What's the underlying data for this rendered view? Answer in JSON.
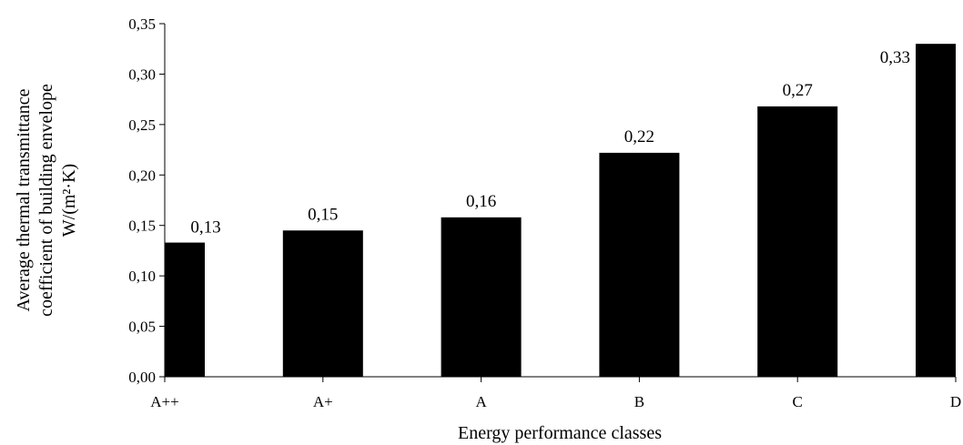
{
  "chart_data": {
    "type": "bar",
    "title": "",
    "categories": [
      "A++",
      "A+",
      "A",
      "B",
      "C",
      "D"
    ],
    "values": [
      0.133,
      0.145,
      0.158,
      0.222,
      0.268,
      0.33
    ],
    "data_labels": [
      "0,13",
      "0,15",
      "0,16",
      "0,22",
      "0,27",
      "0,33"
    ],
    "xlabel": "Energy performance classes",
    "ylabel_lines": [
      "Average thermal transmittance",
      "coefficient of building envelope",
      "W/(m²·K)"
    ],
    "ylim": [
      0,
      0.35
    ],
    "y_ticks": [
      0,
      0.05,
      0.1,
      0.15,
      0.2,
      0.25,
      0.3,
      0.35
    ],
    "y_tick_labels": [
      "0,00",
      "0,05",
      "0,10",
      "0,15",
      "0,20",
      "0,25",
      "0,30",
      "0,35"
    ],
    "bar_color": "#000000",
    "grid": false,
    "legend": "none"
  }
}
